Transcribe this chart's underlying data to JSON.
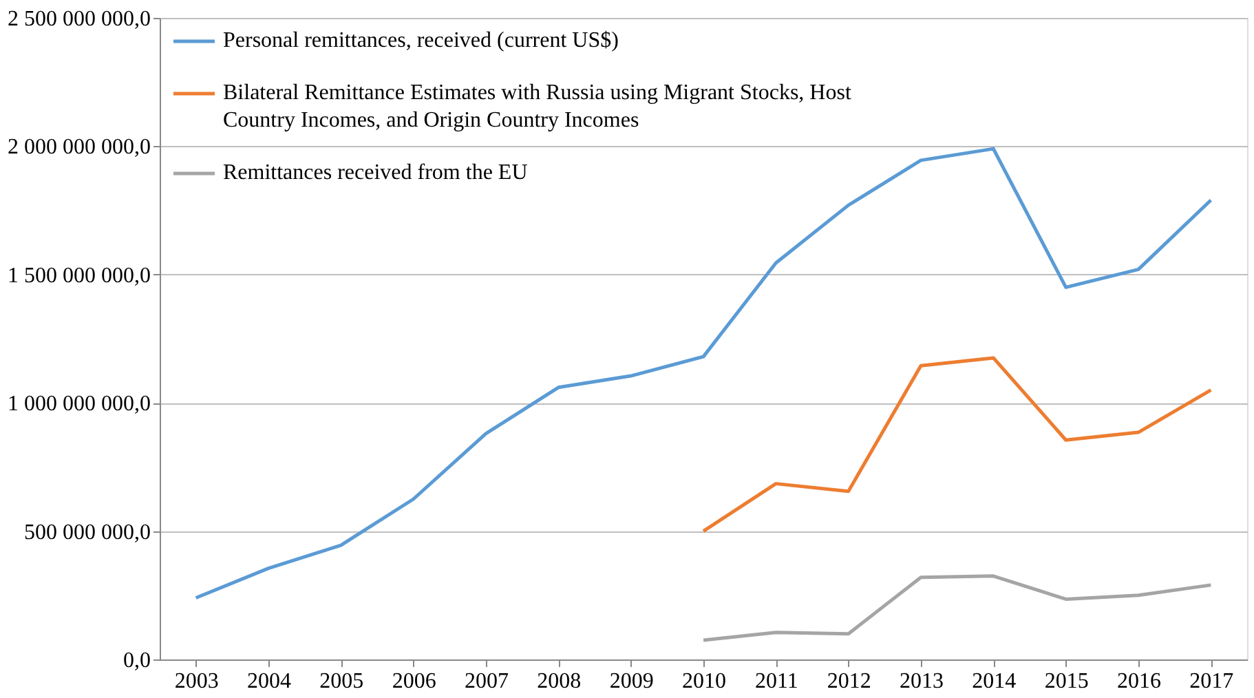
{
  "chart_data": {
    "type": "line",
    "categories": [
      "2003",
      "2004",
      "2005",
      "2006",
      "2007",
      "2008",
      "2009",
      "2010",
      "2011",
      "2012",
      "2013",
      "2014",
      "2015",
      "2016",
      "2017"
    ],
    "series": [
      {
        "name": "Personal remittances, received (current US$)",
        "color": "#5b9bd5",
        "values": [
          240000000,
          355000000,
          445000000,
          625000000,
          880000000,
          1060000000,
          1105000000,
          1180000000,
          1545000000,
          1770000000,
          1945000000,
          1990000000,
          1450000000,
          1520000000,
          1790000000
        ]
      },
      {
        "name": "Bilateral Remittance Estimates with Russia using Migrant Stocks, Host Country Incomes, and Origin Country Incomes",
        "color": "#ed7d31",
        "values": [
          null,
          null,
          null,
          null,
          null,
          null,
          null,
          500000000,
          685000000,
          655000000,
          1145000000,
          1175000000,
          855000000,
          885000000,
          1050000000
        ]
      },
      {
        "name": "Remittances received from the EU",
        "color": "#a5a5a5",
        "values": [
          null,
          null,
          null,
          null,
          null,
          null,
          null,
          75000000,
          105000000,
          100000000,
          320000000,
          325000000,
          235000000,
          250000000,
          290000000
        ]
      }
    ],
    "ylim": [
      0,
      2500000000
    ],
    "yticks": [
      {
        "value": 0,
        "label": "0,0"
      },
      {
        "value": 500000000,
        "label": "500 000 000,0"
      },
      {
        "value": 1000000000,
        "label": "1 000 000 000,0"
      },
      {
        "value": 1500000000,
        "label": "1 500 000 000,0"
      },
      {
        "value": 2000000000,
        "label": "2 000 000 000,0"
      },
      {
        "value": 2500000000,
        "label": "2 500 000 000,0"
      }
    ],
    "grid": "y",
    "legend": "top left",
    "marker": "none",
    "line_style": "solid"
  }
}
